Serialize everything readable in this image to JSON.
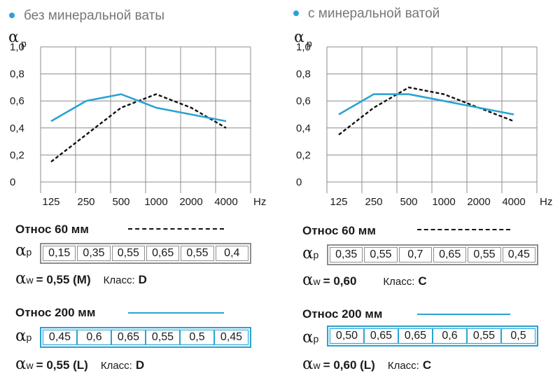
{
  "panels": [
    {
      "title": "без минеральной ваты",
      "rows": [
        {
          "title": "Относ 60 мм",
          "style": "dashed",
          "values": [
            "0,15",
            "0,35",
            "0,55",
            "0,65",
            "0,55",
            "0,4"
          ],
          "aw": "= 0,55 (M)",
          "klass_label": "Класс:",
          "klass": "D"
        },
        {
          "title": "Относ 200 мм",
          "style": "solid",
          "values": [
            "0,45",
            "0,6",
            "0,65",
            "0,55",
            "0,5",
            "0,45"
          ],
          "aw": "= 0,55 (L)",
          "klass_label": "Класс:",
          "klass": "D"
        }
      ]
    },
    {
      "title": "с минеральной ватой",
      "rows": [
        {
          "title": "Относ 60 мм",
          "style": "dashed",
          "values": [
            "0,35",
            "0,55",
            "0,7",
            "0,65",
            "0,55",
            "0,45"
          ],
          "aw": "= 0,60",
          "klass_label": "Класс:",
          "klass": "C"
        },
        {
          "title": "Относ 200 мм",
          "style": "solid",
          "values": [
            "0,50",
            "0,65",
            "0,65",
            "0,6",
            "0,55",
            "0,5"
          ],
          "aw": "= 0,60 (L)",
          "klass_label": "Класс:",
          "klass": "C"
        }
      ]
    }
  ],
  "symbols": {
    "alpha": "α",
    "p": "p",
    "w": "w"
  },
  "colors": {
    "accent": "#2aa3d3",
    "dashed": "#111111",
    "grid": "#8c8c8c"
  },
  "chart_data": [
    {
      "type": "line",
      "title": "без минеральной ваты",
      "ylabel": "αp",
      "xlabel": "Hz",
      "x": [
        "125",
        "250",
        "500",
        "1000",
        "2000",
        "4000"
      ],
      "y_ticks": [
        "0",
        "0,2",
        "0,4",
        "0,6",
        "0,8",
        "1,0"
      ],
      "ylim": [
        0,
        1.0
      ],
      "grid": true,
      "series": [
        {
          "name": "Относ 60 мм",
          "style": "dashed",
          "values": [
            0.15,
            0.35,
            0.55,
            0.65,
            0.55,
            0.4
          ]
        },
        {
          "name": "Относ 200 мм",
          "style": "solid",
          "values": [
            0.45,
            0.6,
            0.65,
            0.55,
            0.5,
            0.45
          ]
        }
      ]
    },
    {
      "type": "line",
      "title": "с минеральной ватой",
      "ylabel": "αp",
      "xlabel": "Hz",
      "x": [
        "125",
        "250",
        "500",
        "1000",
        "2000",
        "4000"
      ],
      "y_ticks": [
        "0",
        "0,2",
        "0,4",
        "0,6",
        "0,8",
        "1,0"
      ],
      "ylim": [
        0,
        1.0
      ],
      "grid": true,
      "series": [
        {
          "name": "Относ 60 мм",
          "style": "dashed",
          "values": [
            0.35,
            0.55,
            0.7,
            0.65,
            0.55,
            0.45
          ]
        },
        {
          "name": "Относ 200 мм",
          "style": "solid",
          "values": [
            0.5,
            0.65,
            0.65,
            0.6,
            0.55,
            0.5
          ]
        }
      ]
    }
  ]
}
